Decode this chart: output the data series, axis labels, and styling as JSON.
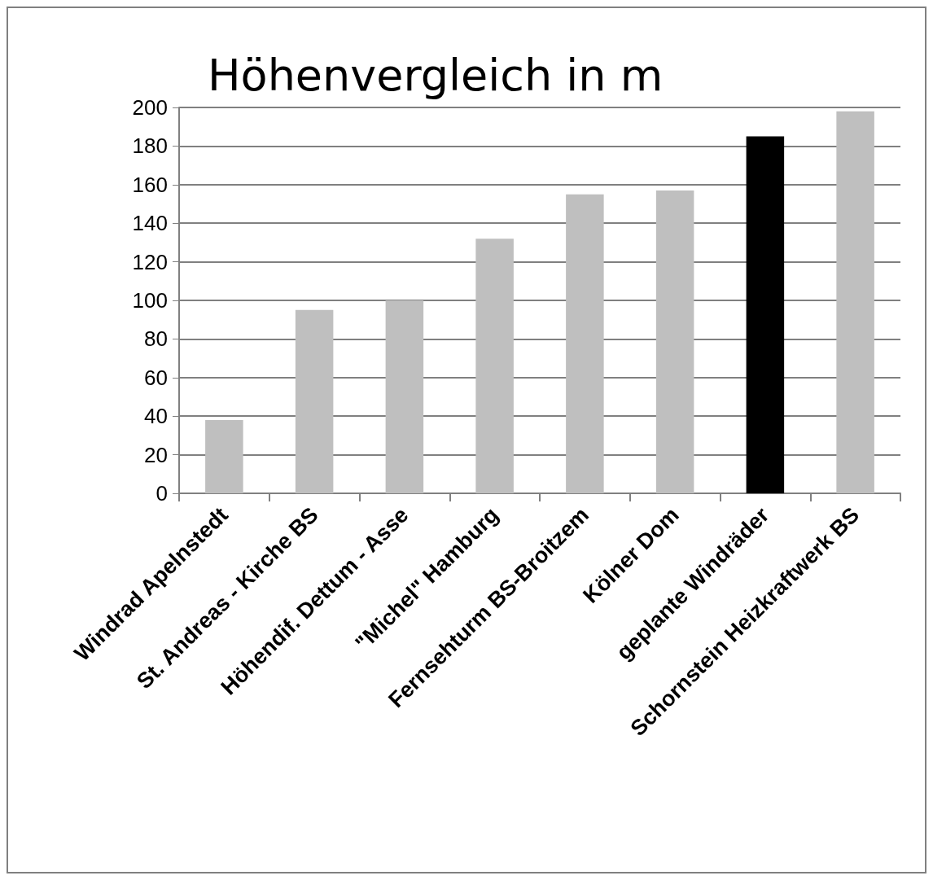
{
  "chart_data": {
    "type": "bar",
    "title": "Höhenvergleich in m",
    "categories": [
      "Windrad Apelnstedt",
      "St. Andreas - Kirche BS",
      "Höhendif. Dettum - Asse",
      "\"Michel\" Hamburg",
      "Fernsehturm BS-Broitzem",
      "Kölner Dom",
      "geplante Windräder",
      "Schornstein Heizkraftwerk BS"
    ],
    "values": [
      38,
      95,
      100,
      132,
      155,
      157,
      185,
      198
    ],
    "colors": [
      "#bfbfbf",
      "#bfbfbf",
      "#bfbfbf",
      "#bfbfbf",
      "#bfbfbf",
      "#bfbfbf",
      "#000000",
      "#bfbfbf"
    ],
    "ylim": [
      0,
      200
    ],
    "yticks": [
      0,
      20,
      40,
      60,
      80,
      100,
      120,
      140,
      160,
      180,
      200
    ],
    "grid": "y"
  }
}
